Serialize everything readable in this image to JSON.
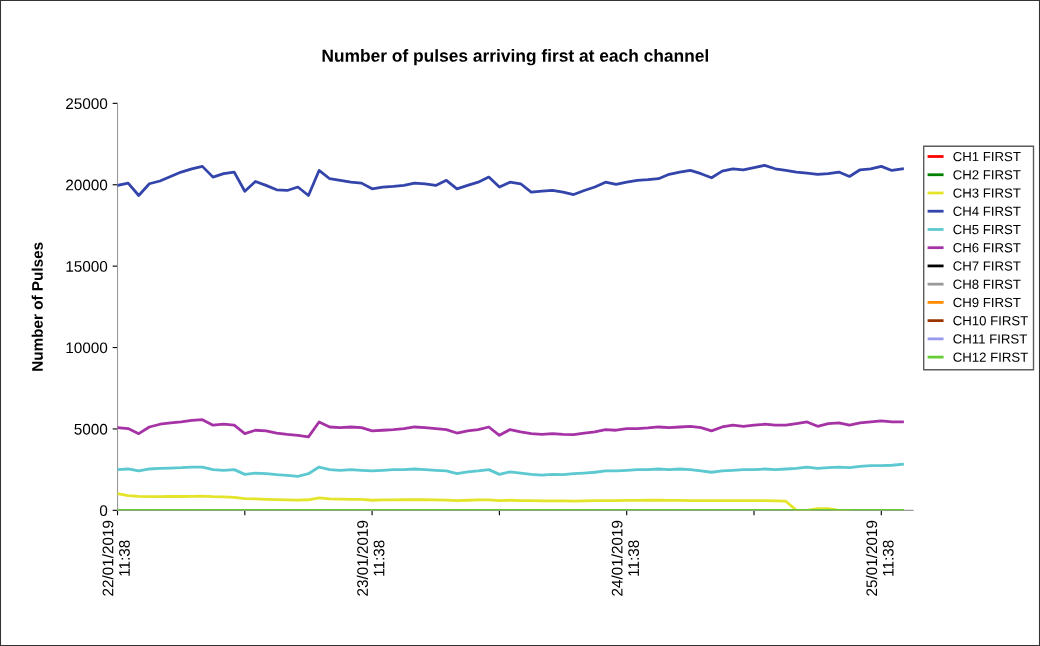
{
  "chart_data": {
    "type": "line",
    "title": "Number of pulses arriving first at each channel",
    "ylabel": "Number of Pulses",
    "x": [
      "2019-01-22T11:38",
      "2019-01-22T12:38",
      "2019-01-22T13:38",
      "2019-01-22T14:38",
      "2019-01-22T15:38",
      "2019-01-22T16:38",
      "2019-01-22T17:38",
      "2019-01-22T18:38",
      "2019-01-22T19:38",
      "2019-01-22T20:38",
      "2019-01-22T21:38",
      "2019-01-22T22:38",
      "2019-01-22T23:38",
      "2019-01-23T00:38",
      "2019-01-23T01:38",
      "2019-01-23T02:38",
      "2019-01-23T03:38",
      "2019-01-23T04:38",
      "2019-01-23T05:38",
      "2019-01-23T06:38",
      "2019-01-23T07:38",
      "2019-01-23T08:38",
      "2019-01-23T09:38",
      "2019-01-23T10:38",
      "2019-01-23T11:38",
      "2019-01-23T12:38",
      "2019-01-23T13:38",
      "2019-01-23T14:38",
      "2019-01-23T15:38",
      "2019-01-23T16:38",
      "2019-01-23T17:38",
      "2019-01-23T18:38",
      "2019-01-23T19:38",
      "2019-01-23T20:38",
      "2019-01-23T21:38",
      "2019-01-23T22:38",
      "2019-01-23T23:38",
      "2019-01-24T00:38",
      "2019-01-24T01:38",
      "2019-01-24T02:38",
      "2019-01-24T03:38",
      "2019-01-24T04:38",
      "2019-01-24T05:38",
      "2019-01-24T06:38",
      "2019-01-24T07:38",
      "2019-01-24T08:38",
      "2019-01-24T09:38",
      "2019-01-24T10:38",
      "2019-01-24T11:38",
      "2019-01-24T12:38",
      "2019-01-24T13:38",
      "2019-01-24T14:38",
      "2019-01-24T15:38",
      "2019-01-24T16:38",
      "2019-01-24T17:38",
      "2019-01-24T18:38",
      "2019-01-24T19:38",
      "2019-01-24T20:38",
      "2019-01-24T21:38",
      "2019-01-24T22:38",
      "2019-01-24T23:38",
      "2019-01-25T00:38",
      "2019-01-25T01:38",
      "2019-01-25T02:38",
      "2019-01-25T03:38",
      "2019-01-25T04:38",
      "2019-01-25T05:38",
      "2019-01-25T06:38",
      "2019-01-25T07:38",
      "2019-01-25T08:38",
      "2019-01-25T09:38",
      "2019-01-25T10:38",
      "2019-01-25T11:38",
      "2019-01-25T12:38",
      "2019-01-25T13:38"
    ],
    "series": [
      {
        "name": "CH1 FIRST",
        "color": "#ff0000",
        "values": [
          null,
          null,
          null,
          null,
          null,
          null,
          null,
          null,
          null,
          null,
          null,
          null,
          null,
          null,
          null,
          null,
          null,
          null,
          null,
          null,
          null,
          null,
          null,
          null,
          null,
          null,
          null,
          null,
          null,
          null,
          null,
          null,
          null,
          null,
          null,
          null,
          null,
          null,
          null,
          null,
          null,
          null,
          null,
          null,
          null,
          null,
          null,
          null,
          null,
          null,
          null,
          null,
          null,
          null,
          null,
          null,
          null,
          null,
          null,
          null,
          null,
          null,
          null,
          null,
          null,
          null,
          null,
          null,
          null,
          null,
          null,
          null,
          null,
          null,
          null
        ]
      },
      {
        "name": "CH2 FIRST",
        "color": "#008000",
        "values": [
          null,
          null,
          null,
          null,
          null,
          null,
          null,
          null,
          null,
          null,
          null,
          null,
          null,
          null,
          null,
          null,
          null,
          null,
          null,
          null,
          null,
          null,
          null,
          null,
          null,
          null,
          null,
          null,
          null,
          null,
          null,
          null,
          null,
          null,
          null,
          null,
          null,
          null,
          null,
          null,
          null,
          null,
          null,
          null,
          null,
          null,
          null,
          null,
          null,
          null,
          null,
          null,
          null,
          null,
          null,
          null,
          null,
          null,
          null,
          null,
          null,
          null,
          null,
          null,
          null,
          null,
          null,
          null,
          null,
          null,
          null,
          null,
          null,
          null,
          null
        ]
      },
      {
        "name": "CH3 FIRST",
        "color": "#e4e42a",
        "values": [
          1020,
          900,
          860,
          840,
          840,
          850,
          850,
          860,
          870,
          840,
          830,
          800,
          720,
          700,
          680,
          660,
          640,
          630,
          650,
          760,
          700,
          690,
          680,
          670,
          620,
          640,
          640,
          650,
          660,
          650,
          640,
          630,
          600,
          620,
          640,
          640,
          600,
          620,
          600,
          590,
          580,
          580,
          580,
          570,
          580,
          590,
          600,
          600,
          610,
          610,
          620,
          620,
          610,
          610,
          600,
          600,
          590,
          600,
          600,
          600,
          590,
          590,
          580,
          560,
          0,
          0,
          100,
          100,
          0,
          0,
          null,
          null,
          null,
          null,
          null
        ]
      },
      {
        "name": "CH4 FIRST",
        "color": "#3344aa",
        "values": [
          19960,
          20100,
          19340,
          20060,
          20230,
          20510,
          20780,
          20980,
          21130,
          20470,
          20680,
          20780,
          19600,
          20200,
          19960,
          19690,
          19650,
          19860,
          19340,
          20880,
          20370,
          20270,
          20160,
          20100,
          19750,
          19860,
          19900,
          19960,
          20100,
          20060,
          19960,
          20270,
          19750,
          19960,
          20160,
          20470,
          19860,
          20160,
          20060,
          19550,
          19610,
          19650,
          19550,
          19400,
          19650,
          19860,
          20160,
          20020,
          20160,
          20270,
          20310,
          20370,
          20640,
          20780,
          20880,
          20680,
          20430,
          20840,
          20980,
          20920,
          21050,
          21190,
          20980,
          20880,
          20780,
          20720,
          20640,
          20680,
          20780,
          20510,
          20920,
          20980,
          21130,
          20880,
          20980
        ]
      },
      {
        "name": "CH5 FIRST",
        "color": "#5cc8d0",
        "values": [
          2500,
          2540,
          2420,
          2540,
          2580,
          2600,
          2620,
          2660,
          2660,
          2500,
          2460,
          2500,
          2210,
          2290,
          2250,
          2190,
          2150,
          2090,
          2250,
          2660,
          2500,
          2460,
          2500,
          2460,
          2420,
          2460,
          2500,
          2500,
          2540,
          2500,
          2460,
          2420,
          2250,
          2360,
          2420,
          2500,
          2210,
          2360,
          2290,
          2210,
          2170,
          2210,
          2190,
          2250,
          2290,
          2340,
          2420,
          2420,
          2460,
          2500,
          2500,
          2540,
          2500,
          2540,
          2500,
          2420,
          2340,
          2420,
          2460,
          2500,
          2500,
          2540,
          2500,
          2540,
          2580,
          2660,
          2580,
          2620,
          2660,
          2620,
          2700,
          2750,
          2750,
          2770,
          2830
        ]
      },
      {
        "name": "CH6 FIRST",
        "color": "#a633a6",
        "values": [
          5080,
          5020,
          4710,
          5120,
          5290,
          5370,
          5430,
          5530,
          5570,
          5230,
          5290,
          5230,
          4710,
          4920,
          4880,
          4750,
          4670,
          4610,
          4510,
          5430,
          5120,
          5080,
          5120,
          5080,
          4880,
          4920,
          4960,
          5020,
          5120,
          5080,
          5020,
          4960,
          4750,
          4880,
          4960,
          5120,
          4610,
          4960,
          4820,
          4710,
          4670,
          4710,
          4670,
          4650,
          4750,
          4820,
          4960,
          4920,
          5020,
          5020,
          5060,
          5120,
          5080,
          5120,
          5160,
          5080,
          4880,
          5120,
          5230,
          5160,
          5230,
          5290,
          5230,
          5230,
          5330,
          5430,
          5160,
          5330,
          5370,
          5230,
          5370,
          5430,
          5490,
          5430,
          5430
        ]
      },
      {
        "name": "CH7 FIRST",
        "color": "#000000",
        "values": [
          null,
          null,
          null,
          null,
          null,
          null,
          null,
          null,
          null,
          null,
          null,
          null,
          null,
          null,
          null,
          null,
          null,
          null,
          null,
          null,
          null,
          null,
          null,
          null,
          null,
          null,
          null,
          null,
          null,
          null,
          null,
          null,
          null,
          null,
          null,
          null,
          null,
          null,
          null,
          null,
          null,
          null,
          null,
          null,
          null,
          null,
          null,
          null,
          null,
          null,
          null,
          null,
          null,
          null,
          null,
          null,
          null,
          null,
          null,
          null,
          null,
          null,
          null,
          null,
          null,
          null,
          null,
          null,
          null,
          null,
          null,
          null,
          null,
          null,
          null
        ]
      },
      {
        "name": "CH8 FIRST",
        "color": "#999999",
        "values": [
          null,
          null,
          null,
          null,
          null,
          null,
          null,
          null,
          null,
          null,
          null,
          null,
          null,
          null,
          null,
          null,
          null,
          null,
          null,
          null,
          null,
          null,
          null,
          null,
          null,
          null,
          null,
          null,
          null,
          null,
          null,
          null,
          null,
          null,
          null,
          null,
          null,
          null,
          null,
          null,
          null,
          null,
          null,
          null,
          null,
          null,
          null,
          null,
          null,
          null,
          null,
          null,
          null,
          null,
          null,
          null,
          null,
          null,
          null,
          null,
          null,
          null,
          null,
          null,
          null,
          null,
          null,
          null,
          null,
          null,
          null,
          null,
          null,
          null,
          null
        ]
      },
      {
        "name": "CH9 FIRST",
        "color": "#ff8c00",
        "values": [
          null,
          null,
          null,
          null,
          null,
          null,
          null,
          null,
          null,
          null,
          null,
          null,
          null,
          null,
          null,
          null,
          null,
          null,
          null,
          null,
          null,
          null,
          null,
          null,
          null,
          null,
          null,
          null,
          null,
          null,
          null,
          null,
          null,
          null,
          null,
          null,
          null,
          null,
          null,
          null,
          null,
          null,
          null,
          null,
          null,
          null,
          null,
          null,
          null,
          null,
          null,
          null,
          null,
          null,
          null,
          null,
          null,
          null,
          null,
          null,
          null,
          null,
          null,
          null,
          null,
          null,
          null,
          null,
          null,
          null,
          null,
          null,
          null,
          null,
          null
        ]
      },
      {
        "name": "CH10 FIRST",
        "color": "#993300",
        "values": [
          null,
          null,
          null,
          null,
          null,
          null,
          null,
          null,
          null,
          null,
          null,
          null,
          null,
          null,
          null,
          null,
          null,
          null,
          null,
          null,
          null,
          null,
          null,
          null,
          null,
          null,
          null,
          null,
          null,
          null,
          null,
          null,
          null,
          null,
          null,
          null,
          null,
          null,
          null,
          null,
          null,
          null,
          null,
          null,
          null,
          null,
          null,
          null,
          null,
          null,
          null,
          null,
          null,
          null,
          null,
          null,
          null,
          null,
          null,
          null,
          null,
          null,
          null,
          null,
          null,
          null,
          null,
          null,
          null,
          null,
          null,
          null,
          null,
          null,
          null
        ]
      },
      {
        "name": "CH11 FIRST",
        "color": "#9999ee",
        "values": [
          null,
          null,
          null,
          null,
          null,
          null,
          null,
          null,
          null,
          null,
          null,
          null,
          null,
          null,
          null,
          null,
          null,
          null,
          null,
          null,
          null,
          null,
          null,
          null,
          null,
          null,
          null,
          null,
          null,
          null,
          null,
          null,
          null,
          null,
          null,
          null,
          null,
          null,
          null,
          null,
          null,
          null,
          null,
          null,
          null,
          null,
          null,
          null,
          null,
          null,
          null,
          null,
          null,
          null,
          null,
          null,
          null,
          null,
          null,
          null,
          null,
          null,
          null,
          null,
          null,
          null,
          null,
          null,
          null,
          null,
          null,
          null,
          null,
          null,
          null
        ]
      },
      {
        "name": "CH12 FIRST",
        "color": "#66cc33",
        "x": [
          "2019-01-22T11:38",
          "2019-01-25T13:38"
        ],
        "values": [
          0,
          0
        ]
      }
    ],
    "xlim": [
      "2019-01-22T11:38",
      "2019-01-25T14:38"
    ],
    "xticks": [
      {
        "value": "2019-01-22T11:38",
        "label": "22/01/2019\n11:38"
      },
      {
        "value": "2019-01-22T23:38",
        "label": null
      },
      {
        "value": "2019-01-23T11:38",
        "label": "23/01/2019\n11:38"
      },
      {
        "value": "2019-01-23T23:38",
        "label": null
      },
      {
        "value": "2019-01-24T11:38",
        "label": "24/01/2019\n11:38"
      },
      {
        "value": "2019-01-24T23:38",
        "label": null
      },
      {
        "value": "2019-01-25T11:38",
        "label": "25/01/2019\n11:38"
      }
    ],
    "ylim": [
      0,
      25000
    ],
    "yticks": [
      0,
      5000,
      10000,
      15000,
      20000,
      25000
    ],
    "grid": false,
    "legend": "right",
    "marker": "none",
    "line_style": "solid"
  }
}
